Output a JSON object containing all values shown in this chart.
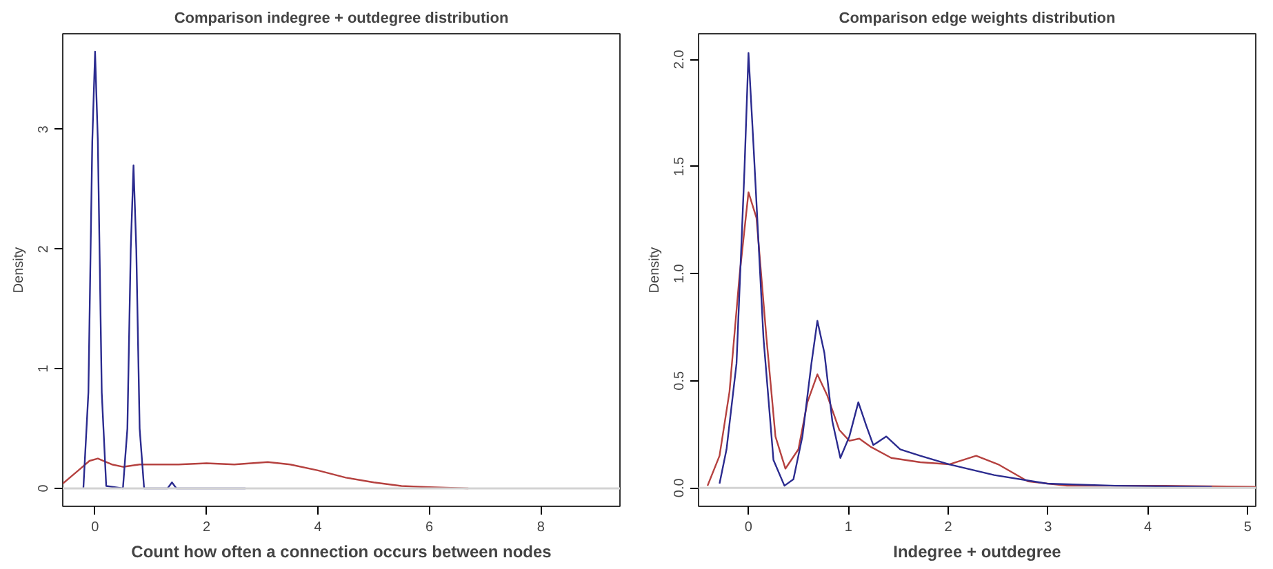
{
  "chart_data": [
    {
      "type": "line",
      "title": "Comparison indegree + outdegree distribution",
      "xlabel": "Count how often a connection occurs between nodes",
      "ylabel": "Density",
      "xlim": [
        -0.58,
        9.42
      ],
      "ylim": [
        -0.15,
        3.8
      ],
      "xticks": [
        0,
        2,
        4,
        6,
        8
      ],
      "yticks": [
        0,
        1,
        2,
        3
      ],
      "grid": false,
      "ref_lines": [
        {
          "axis": "y",
          "value": 0,
          "color": "#d3d3d3"
        }
      ],
      "series": [
        {
          "color": "#b5413f",
          "x": [
            -0.58,
            -0.3,
            -0.1,
            0.05,
            0.3,
            0.5,
            0.8,
            1.5,
            2,
            2.5,
            3.1,
            3.5,
            4,
            4.5,
            5,
            5.5,
            6,
            6.7
          ],
          "values": [
            0.04,
            0.15,
            0.23,
            0.25,
            0.2,
            0.18,
            0.2,
            0.2,
            0.21,
            0.2,
            0.22,
            0.2,
            0.15,
            0.09,
            0.05,
            0.02,
            0.01,
            0
          ]
        },
        {
          "color": "#2b2b8f",
          "x": [
            -0.21,
            -0.12,
            -0.05,
            0,
            0.05,
            0.12,
            0.2,
            0.5,
            0.58,
            0.64,
            0.69,
            0.74,
            0.8,
            0.88,
            1.3,
            1.38,
            1.46,
            2.7
          ],
          "values": [
            0,
            0.8,
            2.9,
            3.65,
            2.9,
            0.8,
            0.02,
            0,
            0.5,
            2.0,
            2.7,
            2.0,
            0.5,
            0,
            0,
            0.05,
            0,
            0
          ]
        }
      ]
    },
    {
      "type": "line",
      "title": "Comparison edge weights distribution",
      "xlabel": "Indegree + outdegree",
      "ylabel": "Density",
      "xlim": [
        -0.5,
        5.08
      ],
      "ylim": [
        -0.086,
        2.12
      ],
      "xticks": [
        0,
        1,
        2,
        3,
        4,
        5
      ],
      "yticks": [
        {
          "value": 0,
          "label": "0.0"
        },
        0.5,
        {
          "value": 1,
          "label": "1.0"
        },
        1.5,
        {
          "value": 2,
          "label": "2.0"
        }
      ],
      "grid": false,
      "ref_lines": [
        {
          "axis": "y",
          "value": 0,
          "color": "#d3d3d3"
        }
      ],
      "series": [
        {
          "color": "#b5413f",
          "x": [
            -0.41,
            -0.29,
            -0.19,
            -0.09,
            0,
            0.08,
            0.18,
            0.27,
            0.37,
            0.5,
            0.59,
            0.69,
            0.79,
            0.91,
            1.01,
            1.11,
            1.23,
            1.43,
            1.72,
            2.01,
            2.28,
            2.5,
            2.8,
            3.19,
            4.17,
            5.08
          ],
          "values": [
            0.01,
            0.15,
            0.45,
            0.99,
            1.38,
            1.26,
            0.7,
            0.24,
            0.09,
            0.18,
            0.4,
            0.53,
            0.43,
            0.27,
            0.22,
            0.23,
            0.19,
            0.14,
            0.12,
            0.11,
            0.15,
            0.11,
            0.03,
            0.01,
            0.01,
            0.005
          ]
        },
        {
          "color": "#2b2b8f",
          "x": [
            -0.29,
            -0.22,
            -0.12,
            -0.04,
            0,
            0.05,
            0.15,
            0.25,
            0.36,
            0.45,
            0.54,
            0.63,
            0.69,
            0.76,
            0.84,
            0.92,
            1.01,
            1.1,
            1.18,
            1.25,
            1.38,
            1.52,
            1.72,
            2.01,
            2.46,
            2.99,
            3.68,
            4.64
          ],
          "values": [
            0.02,
            0.18,
            0.58,
            1.49,
            2.03,
            1.6,
            0.7,
            0.13,
            0.01,
            0.04,
            0.24,
            0.58,
            0.78,
            0.63,
            0.31,
            0.14,
            0.24,
            0.4,
            0.29,
            0.2,
            0.24,
            0.18,
            0.15,
            0.11,
            0.06,
            0.02,
            0.01,
            0.005
          ]
        }
      ]
    }
  ]
}
